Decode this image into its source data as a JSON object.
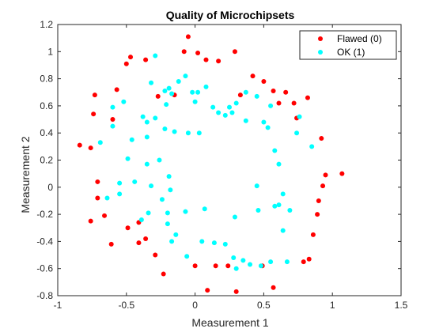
{
  "chart_data": {
    "type": "scatter",
    "title": "Quality of Microchipsets",
    "xlabel": "Measurement 1",
    "ylabel": "Measurement 2",
    "xlim": [
      -1,
      1.5
    ],
    "ylim": [
      -0.8,
      1.2
    ],
    "xticks": [
      "-1",
      "-0.5",
      "0",
      "0.5",
      "1",
      "1.5"
    ],
    "yticks": [
      "-0.8",
      "-0.6",
      "-0.4",
      "-0.2",
      "0",
      "0.2",
      "0.4",
      "0.6",
      "0.8",
      "1",
      "1.2"
    ],
    "grid": false,
    "legend_position": "top-right",
    "series": [
      {
        "name": "Flawed (0)",
        "color": "#ff0000",
        "points": [
          [
            -0.84,
            0.31
          ],
          [
            -0.76,
            0.29
          ],
          [
            -0.74,
            0.54
          ],
          [
            -0.73,
            0.68
          ],
          [
            -0.6,
            0.5
          ],
          [
            -0.57,
            0.72
          ],
          [
            -0.5,
            0.91
          ],
          [
            -0.47,
            0.96
          ],
          [
            -0.36,
            0.94
          ],
          [
            -0.27,
            0.67
          ],
          [
            -0.15,
            0.68
          ],
          [
            -0.08,
            1.0
          ],
          [
            -0.05,
            1.11
          ],
          [
            0.02,
            0.99
          ],
          [
            0.08,
            0.94
          ],
          [
            0.17,
            0.93
          ],
          [
            0.29,
            1.0
          ],
          [
            0.33,
            0.68
          ],
          [
            0.42,
            0.82
          ],
          [
            0.5,
            0.78
          ],
          [
            0.57,
            0.71
          ],
          [
            0.61,
            0.62
          ],
          [
            0.66,
            0.7
          ],
          [
            0.72,
            0.62
          ],
          [
            0.74,
            0.51
          ],
          [
            0.82,
            0.66
          ],
          [
            0.92,
            0.36
          ],
          [
            0.95,
            0.09
          ],
          [
            0.93,
            0.01
          ],
          [
            1.07,
            0.1
          ],
          [
            0.9,
            -0.1
          ],
          [
            0.89,
            -0.2
          ],
          [
            0.86,
            -0.35
          ],
          [
            0.83,
            -0.53
          ],
          [
            0.79,
            -0.55
          ],
          [
            0.57,
            -0.74
          ],
          [
            0.49,
            -0.58
          ],
          [
            0.3,
            -0.77
          ],
          [
            0.24,
            -0.58
          ],
          [
            0.15,
            -0.58
          ],
          [
            0.09,
            -0.76
          ],
          [
            0.0,
            -0.58
          ],
          [
            -0.23,
            -0.64
          ],
          [
            -0.29,
            -0.5
          ],
          [
            -0.36,
            -0.38
          ],
          [
            -0.41,
            -0.26
          ],
          [
            -0.41,
            -0.41
          ],
          [
            -0.49,
            -0.3
          ],
          [
            -0.61,
            -0.42
          ],
          [
            -0.66,
            -0.21
          ],
          [
            -0.71,
            -0.08
          ],
          [
            -0.71,
            0.04
          ],
          [
            -0.76,
            -0.25
          ]
        ]
      },
      {
        "name": "OK (1)",
        "color": "#00ffff",
        "points": [
          [
            -0.6,
            0.59
          ],
          [
            -0.6,
            0.45
          ],
          [
            -0.52,
            0.63
          ],
          [
            -0.46,
            0.35
          ],
          [
            -0.35,
            0.48
          ],
          [
            -0.35,
            0.17
          ],
          [
            -0.38,
            0.52
          ],
          [
            -0.32,
            0.77
          ],
          [
            -0.29,
            0.97
          ],
          [
            -0.22,
            0.71
          ],
          [
            -0.19,
            0.73
          ],
          [
            -0.17,
            0.69
          ],
          [
            -0.12,
            0.78
          ],
          [
            -0.07,
            0.82
          ],
          [
            -0.02,
            0.7
          ],
          [
            0.02,
            0.7
          ],
          [
            0.08,
            0.74
          ],
          [
            0.13,
            0.59
          ],
          [
            0.17,
            0.55
          ],
          [
            0.22,
            0.53
          ],
          [
            0.27,
            0.55
          ],
          [
            0.3,
            0.62
          ],
          [
            0.37,
            0.7
          ],
          [
            0.45,
            0.67
          ],
          [
            0.5,
            0.48
          ],
          [
            0.53,
            0.44
          ],
          [
            0.58,
            0.27
          ],
          [
            0.61,
            0.17
          ],
          [
            0.64,
            -0.05
          ],
          [
            0.61,
            -0.13
          ],
          [
            0.69,
            -0.17
          ],
          [
            0.64,
            -0.32
          ],
          [
            0.67,
            -0.55
          ],
          [
            0.55,
            -0.55
          ],
          [
            0.48,
            -0.58
          ],
          [
            0.4,
            -0.57
          ],
          [
            0.3,
            -0.6
          ],
          [
            0.28,
            -0.52
          ],
          [
            0.22,
            -0.42
          ],
          [
            0.14,
            -0.41
          ],
          [
            0.05,
            -0.4
          ],
          [
            -0.06,
            -0.51
          ],
          [
            -0.17,
            -0.4
          ],
          [
            -0.14,
            -0.35
          ],
          [
            -0.2,
            -0.27
          ],
          [
            -0.2,
            -0.19
          ],
          [
            -0.24,
            -0.09
          ],
          [
            -0.18,
            -0.02
          ],
          [
            -0.19,
            0.08
          ],
          [
            -0.22,
            0.43
          ],
          [
            -0.15,
            0.41
          ],
          [
            -0.05,
            0.4
          ],
          [
            0.03,
            0.4
          ],
          [
            -0.07,
            -0.18
          ],
          [
            0.07,
            -0.16
          ],
          [
            0.29,
            -0.22
          ],
          [
            0.45,
            0.01
          ],
          [
            0.46,
            -0.17
          ],
          [
            0.58,
            -0.14
          ],
          [
            0.35,
            -0.54
          ],
          [
            -0.39,
            -0.24
          ],
          [
            -0.32,
            0.01
          ],
          [
            -0.34,
            -0.19
          ],
          [
            -0.44,
            0.04
          ],
          [
            -0.55,
            0.03
          ],
          [
            -0.55,
            -0.05
          ],
          [
            -0.64,
            -0.08
          ],
          [
            -0.69,
            0.33
          ],
          [
            -0.49,
            0.21
          ],
          [
            -0.35,
            0.37
          ],
          [
            -0.21,
            0.61
          ],
          [
            -0.29,
            0.51
          ],
          [
            -0.26,
            0.2
          ],
          [
            0.0,
            0.63
          ],
          [
            0.25,
            0.59
          ],
          [
            0.37,
            0.49
          ],
          [
            0.55,
            0.6
          ],
          [
            0.74,
            0.4
          ],
          [
            0.76,
            0.52
          ],
          [
            0.85,
            0.3
          ]
        ]
      }
    ]
  }
}
